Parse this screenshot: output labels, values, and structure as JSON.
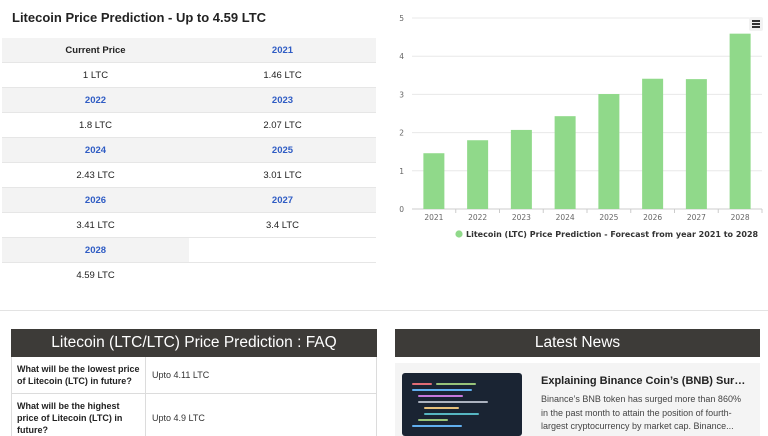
{
  "page_title": "Litecoin Price Prediction - Up to 4.59 LTC",
  "price_table": [
    [
      "Current Price",
      "2021"
    ],
    [
      "1 LTC",
      "1.46 LTC"
    ],
    [
      "2022",
      "2023"
    ],
    [
      "1.8 LTC",
      "2.07 LTC"
    ],
    [
      "2024",
      "2025"
    ],
    [
      "2.43 LTC",
      "3.01 LTC"
    ],
    [
      "2026",
      "2027"
    ],
    [
      "3.41 LTC",
      "3.4 LTC"
    ],
    [
      "2028",
      ""
    ],
    [
      "4.59 LTC",
      ""
    ]
  ],
  "chart_data": {
    "type": "bar",
    "categories": [
      "2021",
      "2022",
      "2023",
      "2024",
      "2025",
      "2026",
      "2027",
      "2028"
    ],
    "series": [
      {
        "name": "Litecoin (LTC) Price Prediction - Forecast from year 2021 to 2028",
        "values": [
          1.46,
          1.8,
          2.07,
          2.43,
          3.01,
          3.41,
          3.4,
          4.59
        ]
      }
    ],
    "yticks": [
      "0",
      "1",
      "2",
      "3",
      "4",
      "5"
    ],
    "ylim": [
      0,
      5
    ],
    "grid": true,
    "legend_position": "bottom",
    "bar_color": "#90d98a"
  },
  "faq": {
    "title": "Litecoin (LTC/LTC) Price Prediction : FAQ",
    "rows": [
      {
        "q": "What will be the lowest price of Litecoin (LTC) in future?",
        "a": "Upto 4.11 LTC"
      },
      {
        "q": "What will be the highest price of Litecoin (LTC) in future?",
        "a": "Upto 4.9 LTC"
      }
    ]
  },
  "news": {
    "title": "Latest News",
    "item": {
      "headline": "Explaining Binance Coin’s (BNB) Surge...",
      "body": "Binance’s BNB token has surged more than 860% in the past month to attain the position of fourth-largest cryptocurrency by market cap.  Binance..."
    }
  },
  "colors": {
    "year_text": "#2f5cc4",
    "header_bg": "#3d3b38",
    "bar": "#90d98a"
  },
  "icons": {
    "chart_menu": "hamburger-menu-icon"
  }
}
